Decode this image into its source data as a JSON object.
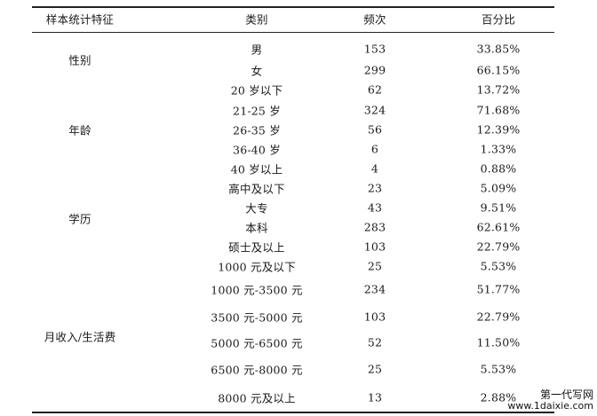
{
  "headers": [
    "样本统计特征",
    "类别",
    "频次",
    "百分比"
  ],
  "groups": [
    {
      "name": "性别",
      "rows": [
        {
          "category": "男",
          "count": "153",
          "percent": "33.85%"
        },
        {
          "category": "女",
          "count": "299",
          "percent": "66.15%"
        }
      ]
    },
    {
      "name": "年龄",
      "rows": [
        {
          "category": "20 岁以下",
          "count": "62",
          "percent": "13.72%"
        },
        {
          "category": "21-25 岁",
          "count": "324",
          "percent": "71.68%"
        },
        {
          "category": "26-35 岁",
          "count": "56",
          "percent": "12.39%"
        },
        {
          "category": "36-40 岁",
          "count": "6",
          "percent": "1.33%"
        },
        {
          "category": "40 岁以上",
          "count": "4",
          "percent": "0.88%"
        }
      ]
    },
    {
      "name": "学历",
      "rows": [
        {
          "category": "高中及以下",
          "count": "23",
          "percent": "5.09%"
        },
        {
          "category": "大专",
          "count": "43",
          "percent": "9.51%"
        },
        {
          "category": "本科",
          "count": "283",
          "percent": "62.61%"
        },
        {
          "category": "硕士及以上",
          "count": "103",
          "percent": "22.79%"
        }
      ]
    },
    {
      "name": "月收入/生活费",
      "rows": [
        {
          "category": "1000 元及以下",
          "count": "25",
          "percent": "5.53%"
        },
        {
          "category": "1000 元-3500 元",
          "count": "234",
          "percent": "51.77%"
        },
        {
          "category": "3500 元-5000 元",
          "count": "103",
          "percent": "22.79%"
        },
        {
          "category": "5000 元-6500 元",
          "count": "52",
          "percent": "11.50%"
        },
        {
          "category": "6500 元-8000 元",
          "count": "25",
          "percent": "5.53%"
        },
        {
          "category": "8000 元及以上",
          "count": "13",
          "percent": "2.88%"
        }
      ]
    }
  ],
  "watermark": {
    "line1": "第一代写网",
    "line2": "www.1daixie.com"
  }
}
